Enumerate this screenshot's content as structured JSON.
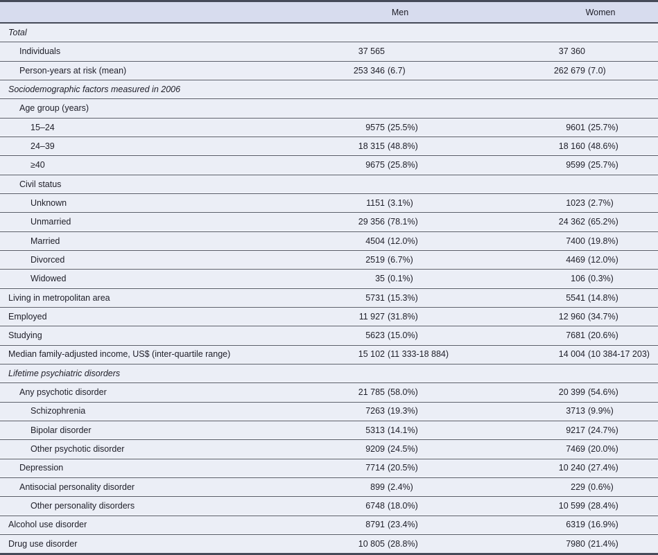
{
  "table": {
    "columns": [
      "Men",
      "Women"
    ],
    "rows": [
      {
        "label": "Total",
        "indent": 0,
        "section": true,
        "men": "",
        "women": ""
      },
      {
        "label": "Individuals",
        "indent": 1,
        "section": false,
        "men": "37 565",
        "women": "37 360"
      },
      {
        "label": "Person-years at risk (mean)",
        "indent": 1,
        "section": false,
        "men": "253 346 (6.7)",
        "women": "262 679 (7.0)"
      },
      {
        "label": "Sociodemographic factors measured in 2006",
        "indent": 0,
        "section": true,
        "men": "",
        "women": ""
      },
      {
        "label": "Age group (years)",
        "indent": 1,
        "section": false,
        "men": "",
        "women": ""
      },
      {
        "label": "15–24",
        "indent": 2,
        "section": false,
        "men": "9575 (25.5%)",
        "women": "9601 (25.7%)"
      },
      {
        "label": "24–39",
        "indent": 2,
        "section": false,
        "men": "18 315 (48.8%)",
        "women": "18 160 (48.6%)"
      },
      {
        "label": "≥40",
        "indent": 2,
        "section": false,
        "men": "9675 (25.8%)",
        "women": "9599 (25.7%)"
      },
      {
        "label": "Civil status",
        "indent": 1,
        "section": false,
        "men": "",
        "women": ""
      },
      {
        "label": "Unknown",
        "indent": 2,
        "section": false,
        "men": "1151 (3.1%)",
        "women": "1023 (2.7%)"
      },
      {
        "label": "Unmarried",
        "indent": 2,
        "section": false,
        "men": "29 356 (78.1%)",
        "women": "24 362 (65.2%)"
      },
      {
        "label": "Married",
        "indent": 2,
        "section": false,
        "men": "4504 (12.0%)",
        "women": "7400 (19.8%)"
      },
      {
        "label": "Divorced",
        "indent": 2,
        "section": false,
        "men": "2519 (6.7%)",
        "women": "4469 (12.0%)"
      },
      {
        "label": "Widowed",
        "indent": 2,
        "section": false,
        "men": "35 (0.1%)",
        "women": "106 (0.3%)"
      },
      {
        "label": "Living in metropolitan area",
        "indent": 0,
        "section": false,
        "men": "5731 (15.3%)",
        "women": "5541 (14.8%)"
      },
      {
        "label": "Employed",
        "indent": 0,
        "section": false,
        "men": "11 927 (31.8%)",
        "women": "12 960 (34.7%)"
      },
      {
        "label": "Studying",
        "indent": 0,
        "section": false,
        "men": "5623 (15.0%)",
        "women": "7681 (20.6%)"
      },
      {
        "label": "Median family-adjusted income, US$ (inter-quartile range)",
        "indent": 0,
        "section": false,
        "men": "15 102 (11 333-18 884)",
        "women": "14 004 (10 384-17 203)"
      },
      {
        "label": "Lifetime psychiatric disorders",
        "indent": 0,
        "section": true,
        "men": "",
        "women": ""
      },
      {
        "label": "Any psychotic disorder",
        "indent": 1,
        "section": false,
        "men": "21 785 (58.0%)",
        "women": "20 399 (54.6%)"
      },
      {
        "label": "Schizophrenia",
        "indent": 2,
        "section": false,
        "men": "7263 (19.3%)",
        "women": "3713 (9.9%)"
      },
      {
        "label": "Bipolar disorder",
        "indent": 2,
        "section": false,
        "men": "5313 (14.1%)",
        "women": "9217 (24.7%)"
      },
      {
        "label": "Other psychotic disorder",
        "indent": 2,
        "section": false,
        "men": "9209 (24.5%)",
        "women": "7469 (20.0%)"
      },
      {
        "label": "Depression",
        "indent": 1,
        "section": false,
        "men": "7714 (20.5%)",
        "women": "10 240 (27.4%)"
      },
      {
        "label": "Antisocial personality disorder",
        "indent": 1,
        "section": false,
        "men": "899 (2.4%)",
        "women": "229 (0.6%)"
      },
      {
        "label": "Other personality disorders",
        "indent": 2,
        "section": false,
        "men": "6748 (18.0%)",
        "women": "10 599 (28.4%)"
      },
      {
        "label": "Alcohol use disorder",
        "indent": 0,
        "section": false,
        "men": "8791 (23.4%)",
        "women": "6319 (16.9%)"
      },
      {
        "label": "Drug use disorder",
        "indent": 0,
        "section": false,
        "men": "10 805 (28.8%)",
        "women": "7980 (21.4%)"
      }
    ]
  },
  "colors": {
    "header_bg": "#d7dcee",
    "row_bg": "#ebeef6",
    "rule_dark": "#454a58",
    "rule_light": "#565a66",
    "text": "#20202a"
  }
}
